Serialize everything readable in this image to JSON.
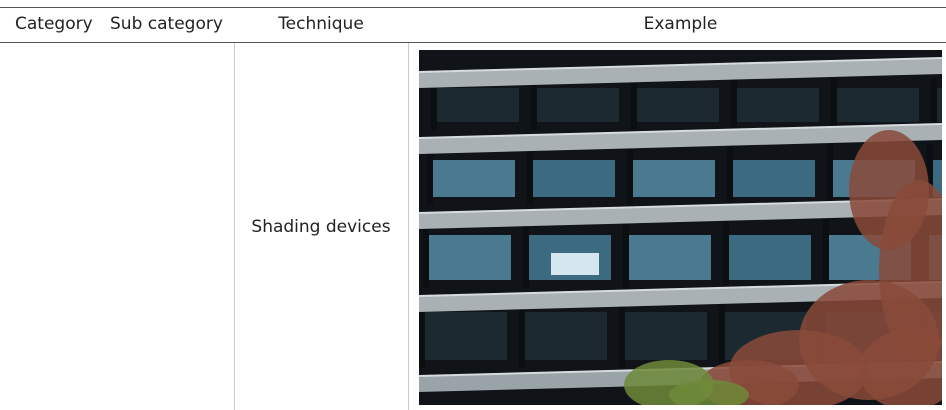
{
  "table": {
    "header": [
      "Category",
      "Sub category",
      "Technique",
      "Example"
    ],
    "rows": [
      {
        "technique": "Shading devices"
      }
    ]
  }
}
